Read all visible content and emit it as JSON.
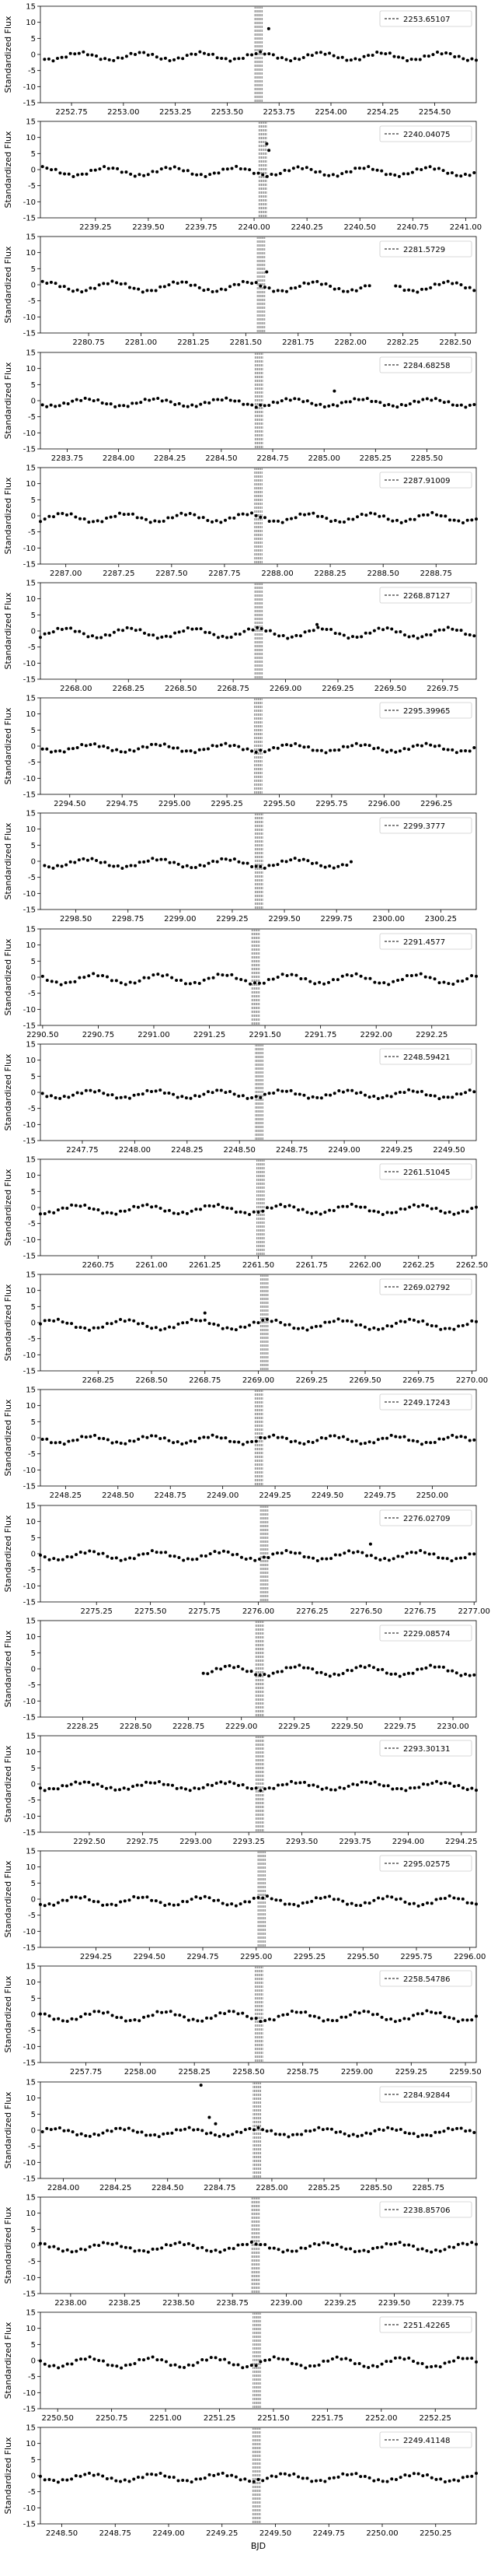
{
  "chart_data": {
    "type": "scatter",
    "xlabel": "BJD",
    "ylabel": "Standardized Flux",
    "yticks": [
      -15,
      -10,
      -5,
      0,
      5,
      10,
      15
    ],
    "ylim": [
      -15,
      15
    ],
    "marker_color": "#000000",
    "band_color": "#808080",
    "legend_placement": "top-right",
    "panels": [
      {
        "legend": "2253.65107",
        "xlim": [
          2252.6,
          2254.7
        ],
        "xticks": [
          2252.75,
          2253.0,
          2253.25,
          2253.5,
          2253.75,
          2254.0,
          2254.25,
          2254.5
        ],
        "x_start": 2252.62,
        "x_end": 2254.7,
        "outliers": [
          {
            "x": 2253.7,
            "y": 8
          }
        ]
      },
      {
        "legend": "2240.04075",
        "xlim": [
          2238.99,
          2241.05
        ],
        "xticks": [
          2239.25,
          2239.5,
          2239.75,
          2240.0,
          2240.25,
          2240.5,
          2240.75,
          2241.0
        ],
        "x_start": 2239.0,
        "x_end": 2241.04,
        "outliers": [
          {
            "x": 2240.06,
            "y": 8
          },
          {
            "x": 2240.07,
            "y": 6
          }
        ]
      },
      {
        "legend": "2281.5729",
        "xlim": [
          2280.52,
          2282.6
        ],
        "xticks": [
          2280.75,
          2281.0,
          2281.25,
          2281.5,
          2281.75,
          2282.0,
          2282.25,
          2282.5
        ],
        "x_start": 2280.53,
        "x_end": 2282.59,
        "gap": [
          2282.1,
          2282.2
        ],
        "outliers": [
          {
            "x": 2281.6,
            "y": 4
          }
        ]
      },
      {
        "legend": "2284.68258",
        "xlim": [
          2283.62,
          2285.74
        ],
        "xticks": [
          2283.75,
          2284.0,
          2284.25,
          2284.5,
          2284.75,
          2285.0,
          2285.25,
          2285.5
        ],
        "x_start": 2283.63,
        "x_end": 2285.73,
        "outliers": [
          {
            "x": 2285.05,
            "y": 3
          }
        ]
      },
      {
        "legend": "2287.91009",
        "xlim": [
          2286.88,
          2288.94
        ],
        "xticks": [
          2287.0,
          2287.25,
          2287.5,
          2287.75,
          2288.0,
          2288.25,
          2288.5,
          2288.75
        ],
        "x_start": 2286.88,
        "x_end": 2288.94,
        "outliers": []
      },
      {
        "legend": "2268.87127",
        "xlim": [
          2267.83,
          2269.91
        ],
        "xticks": [
          2268.0,
          2268.25,
          2268.5,
          2268.75,
          2269.0,
          2269.25,
          2269.5,
          2269.75
        ],
        "x_start": 2267.83,
        "x_end": 2269.9,
        "outliers": [
          {
            "x": 2269.15,
            "y": 2
          }
        ]
      },
      {
        "legend": "2295.39965",
        "xlim": [
          2294.36,
          2296.44
        ],
        "xticks": [
          2294.5,
          2294.75,
          2295.0,
          2295.25,
          2295.5,
          2295.75,
          2296.0,
          2296.25
        ],
        "x_start": 2294.37,
        "x_end": 2296.43,
        "outliers": []
      },
      {
        "legend": "2299.3777",
        "xlim": [
          2298.33,
          2300.42
        ],
        "xticks": [
          2298.5,
          2298.75,
          2299.0,
          2299.25,
          2299.5,
          2299.75,
          2300.0,
          2300.25
        ],
        "x_start": 2298.35,
        "x_end": 2299.82,
        "outliers": []
      },
      {
        "legend": "2291.4577",
        "xlim": [
          2290.49,
          2292.45
        ],
        "xticks": [
          2290.5,
          2290.75,
          2291.0,
          2291.25,
          2291.5,
          2291.75,
          2292.0,
          2292.25
        ],
        "x_start": 2290.5,
        "x_end": 2292.45,
        "outliers": []
      },
      {
        "legend": "2248.59421",
        "xlim": [
          2247.55,
          2249.63
        ],
        "xticks": [
          2247.75,
          2248.0,
          2248.25,
          2248.5,
          2248.75,
          2249.0,
          2249.25,
          2249.5
        ],
        "x_start": 2247.56,
        "x_end": 2249.62,
        "outliers": []
      },
      {
        "legend": "2261.51045",
        "xlim": [
          2260.48,
          2262.52
        ],
        "xticks": [
          2260.75,
          2261.0,
          2261.25,
          2261.5,
          2261.75,
          2262.0,
          2262.25,
          2262.5
        ],
        "x_start": 2260.48,
        "x_end": 2262.52,
        "outliers": []
      },
      {
        "legend": "2269.02792",
        "xlim": [
          2267.98,
          2270.02
        ],
        "xticks": [
          2268.25,
          2268.5,
          2268.75,
          2269.0,
          2269.25,
          2269.5,
          2269.75,
          2270.0
        ],
        "x_start": 2267.98,
        "x_end": 2270.02,
        "outliers": [
          {
            "x": 2268.75,
            "y": 3
          }
        ]
      },
      {
        "legend": "2249.17243",
        "xlim": [
          2248.13,
          2250.21
        ],
        "xticks": [
          2248.25,
          2248.5,
          2248.75,
          2249.0,
          2249.25,
          2249.5,
          2249.75,
          2250.0
        ],
        "x_start": 2248.14,
        "x_end": 2250.2,
        "outliers": []
      },
      {
        "legend": "2276.02709",
        "xlim": [
          2274.99,
          2277.01
        ],
        "xticks": [
          2275.25,
          2275.5,
          2275.75,
          2276.0,
          2276.25,
          2276.5,
          2276.75,
          2277.0
        ],
        "x_start": 2274.99,
        "x_end": 2277.0,
        "outliers": [
          {
            "x": 2276.52,
            "y": 3
          }
        ]
      },
      {
        "legend": "2229.08574",
        "xlim": [
          2228.05,
          2230.11
        ],
        "xticks": [
          2228.25,
          2228.5,
          2228.75,
          2229.0,
          2229.25,
          2229.5,
          2229.75,
          2230.0
        ],
        "x_start": 2228.82,
        "x_end": 2230.1,
        "outliers": []
      },
      {
        "legend": "2293.30131",
        "xlim": [
          2292.27,
          2294.32
        ],
        "xticks": [
          2292.5,
          2292.75,
          2293.0,
          2293.25,
          2293.5,
          2293.75,
          2294.0,
          2294.25
        ],
        "x_start": 2292.27,
        "x_end": 2294.32,
        "outliers": []
      },
      {
        "legend": "2295.02575",
        "xlim": [
          2293.99,
          2296.03
        ],
        "xticks": [
          2294.25,
          2294.5,
          2294.75,
          2295.0,
          2295.25,
          2295.5,
          2295.75,
          2296.0
        ],
        "x_start": 2293.99,
        "x_end": 2296.03,
        "outliers": []
      },
      {
        "legend": "2258.54786",
        "xlim": [
          2257.54,
          2259.55
        ],
        "xticks": [
          2257.75,
          2258.0,
          2258.25,
          2258.5,
          2258.75,
          2259.0,
          2259.25,
          2259.5
        ],
        "x_start": 2257.54,
        "x_end": 2259.55,
        "outliers": []
      },
      {
        "legend": "2284.92844",
        "xlim": [
          2283.89,
          2285.98
        ],
        "xticks": [
          2284.0,
          2284.25,
          2284.5,
          2284.75,
          2285.0,
          2285.25,
          2285.5,
          2285.75
        ],
        "x_start": 2283.9,
        "x_end": 2285.97,
        "outliers": [
          {
            "x": 2284.66,
            "y": 14
          },
          {
            "x": 2284.7,
            "y": 4
          },
          {
            "x": 2284.73,
            "y": 2
          }
        ]
      },
      {
        "legend": "2238.85706",
        "xlim": [
          2237.86,
          2239.88
        ],
        "xticks": [
          2238.0,
          2238.25,
          2238.5,
          2238.75,
          2239.0,
          2239.25,
          2239.5,
          2239.75
        ],
        "x_start": 2237.86,
        "x_end": 2239.88,
        "outliers": []
      },
      {
        "legend": "2251.42265",
        "xlim": [
          2250.42,
          2252.44
        ],
        "xticks": [
          2250.5,
          2250.75,
          2251.0,
          2251.25,
          2251.5,
          2251.75,
          2252.0,
          2252.25
        ],
        "x_start": 2250.42,
        "x_end": 2252.44,
        "outliers": []
      },
      {
        "legend": "2249.41148",
        "xlim": [
          2248.4,
          2250.44
        ],
        "xticks": [
          2248.5,
          2248.75,
          2249.0,
          2249.25,
          2249.5,
          2249.75,
          2250.0,
          2250.25
        ],
        "x_start": 2248.4,
        "x_end": 2250.44,
        "outliers": []
      }
    ]
  }
}
